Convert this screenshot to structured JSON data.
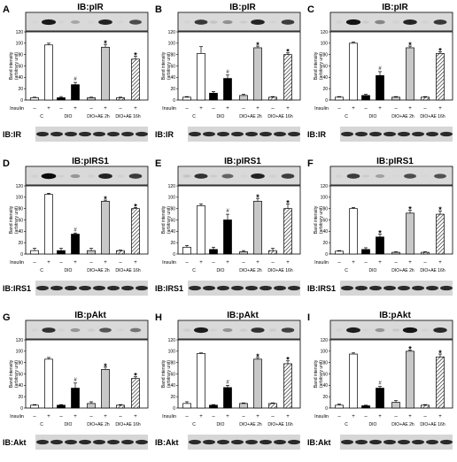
{
  "figure": {
    "insulin_label": "Insulin",
    "ylabel": [
      "Band intensity",
      "(arbitrary unit)"
    ],
    "groups": [
      "C",
      "DIO",
      "DIO+AE 2h",
      "DIO+AE 16h"
    ],
    "insulin_signs": [
      "–",
      "+"
    ],
    "yticks": [
      "0",
      "20",
      "40",
      "60",
      "80",
      "100",
      "120"
    ]
  },
  "chart_data": [
    {
      "type": "bar",
      "panel": "A",
      "title": "IB:pIR",
      "loading_label": "IB:IR",
      "ylim": [
        0,
        120
      ],
      "categories": [
        "C−",
        "C+",
        "DIO−",
        "DIO+",
        "DIO+AE 2h−",
        "DIO+AE 2h+",
        "DIO+AE 16h−",
        "DIO+AE 16h+"
      ],
      "values": [
        4,
        97,
        4,
        27,
        4,
        93,
        4,
        72
      ],
      "errors": [
        1,
        3,
        2,
        4,
        1,
        5,
        1,
        5
      ],
      "annotations": [
        {
          "bar": 3,
          "text": "#"
        },
        {
          "bar": 5,
          "text": "*"
        },
        {
          "bar": 7,
          "text": "*"
        }
      ]
    },
    {
      "type": "bar",
      "panel": "B",
      "title": "IB:pIR",
      "loading_label": "IB:IR",
      "ylim": [
        0,
        120
      ],
      "categories": [
        "C−",
        "C+",
        "DIO−",
        "DIO+",
        "DIO+AE 2h−",
        "DIO+AE 2h+",
        "DIO+AE 16h−",
        "DIO+AE 16h+"
      ],
      "values": [
        5,
        82,
        12,
        38,
        8,
        92,
        5,
        80
      ],
      "errors": [
        1,
        12,
        3,
        6,
        2,
        3,
        1,
        3
      ],
      "annotations": [
        {
          "bar": 3,
          "text": "#"
        },
        {
          "bar": 5,
          "text": "*"
        },
        {
          "bar": 7,
          "text": "*"
        }
      ]
    },
    {
      "type": "bar",
      "panel": "C",
      "title": "IB:pIR",
      "loading_label": "IB:IR",
      "ylim": [
        0,
        120
      ],
      "categories": [
        "C−",
        "C+",
        "DIO−",
        "DIO+",
        "DIO+AE 2h−",
        "DIO+AE 2h+",
        "DIO+AE 16h−",
        "DIO+AE 16h+"
      ],
      "values": [
        5,
        100,
        8,
        43,
        5,
        92,
        5,
        82
      ],
      "errors": [
        1,
        2,
        2,
        7,
        1,
        3,
        1,
        3
      ],
      "annotations": [
        {
          "bar": 3,
          "text": "#"
        },
        {
          "bar": 5,
          "text": "*"
        },
        {
          "bar": 7,
          "text": "*"
        }
      ]
    },
    {
      "type": "bar",
      "panel": "D",
      "title": "IB:pIRS1",
      "loading_label": "IB:IRS1",
      "ylim": [
        0,
        120
      ],
      "categories": [
        "C−",
        "C+",
        "DIO−",
        "DIO+",
        "DIO+AE 2h−",
        "DIO+AE 2h+",
        "DIO+AE 16h−",
        "DIO+AE 16h+"
      ],
      "values": [
        6,
        105,
        6,
        35,
        6,
        93,
        6,
        80
      ],
      "errors": [
        4,
        2,
        4,
        2,
        4,
        2,
        1,
        2
      ],
      "annotations": [
        {
          "bar": 3,
          "text": "#"
        },
        {
          "bar": 5,
          "text": "*"
        },
        {
          "bar": 7,
          "text": "*"
        }
      ]
    },
    {
      "type": "bar",
      "panel": "E",
      "title": "IB:pIRS1",
      "loading_label": "IB:IRS1",
      "ylim": [
        0,
        120
      ],
      "categories": [
        "C−",
        "C+",
        "DIO−",
        "DIO+",
        "DIO+AE 2h−",
        "DIO+AE 2h+",
        "DIO+AE 16h−",
        "DIO+AE 16h+"
      ],
      "values": [
        12,
        85,
        8,
        60,
        4,
        93,
        6,
        80
      ],
      "errors": [
        3,
        3,
        4,
        10,
        2,
        5,
        4,
        8
      ],
      "annotations": [
        {
          "bar": 3,
          "text": "#"
        },
        {
          "bar": 5,
          "text": "*"
        },
        {
          "bar": 7,
          "text": "*"
        }
      ]
    },
    {
      "type": "bar",
      "panel": "F",
      "title": "IB:pIRS1",
      "loading_label": "IB:IRS1",
      "ylim": [
        0,
        120
      ],
      "categories": [
        "C−",
        "C+",
        "DIO−",
        "DIO+",
        "DIO+AE 2h−",
        "DIO+AE 2h+",
        "DIO+AE 16h−",
        "DIO+AE 16h+"
      ],
      "values": [
        5,
        80,
        8,
        30,
        3,
        72,
        3,
        70
      ],
      "errors": [
        1,
        2,
        3,
        5,
        1,
        5,
        1,
        6
      ],
      "annotations": [
        {
          "bar": 3,
          "text": "*"
        },
        {
          "bar": 5,
          "text": "*"
        },
        {
          "bar": 7,
          "text": "*"
        }
      ]
    },
    {
      "type": "bar",
      "panel": "G",
      "title": "IB:pAkt",
      "loading_label": "IB:Akt",
      "ylim": [
        0,
        120
      ],
      "categories": [
        "C−",
        "C+",
        "DIO−",
        "DIO+",
        "DIO+AE 2h−",
        "DIO+AE 2h+",
        "DIO+AE 16h−",
        "DIO+AE 16h+"
      ],
      "values": [
        5,
        86,
        5,
        35,
        8,
        68,
        5,
        52
      ],
      "errors": [
        1,
        3,
        1,
        9,
        3,
        4,
        1,
        3
      ],
      "annotations": [
        {
          "bar": 3,
          "text": "#"
        },
        {
          "bar": 5,
          "text": "*"
        },
        {
          "bar": 7,
          "text": "*"
        }
      ]
    },
    {
      "type": "bar",
      "panel": "H",
      "title": "IB:pAkt",
      "loading_label": "IB:Akt",
      "ylim": [
        0,
        120
      ],
      "categories": [
        "C−",
        "C+",
        "DIO−",
        "DIO+",
        "DIO+AE 2h−",
        "DIO+AE 2h+",
        "DIO+AE 16h−",
        "DIO+AE 16h+"
      ],
      "values": [
        8,
        96,
        5,
        36,
        8,
        86,
        8,
        78
      ],
      "errors": [
        3,
        1,
        1,
        4,
        1,
        3,
        1,
        5
      ],
      "annotations": [
        {
          "bar": 3,
          "text": "#"
        },
        {
          "bar": 5,
          "text": "*"
        },
        {
          "bar": 7,
          "text": "*"
        }
      ]
    },
    {
      "type": "bar",
      "panel": "I",
      "title": "IB:pAkt",
      "loading_label": "IB:Akt",
      "ylim": [
        0,
        120
      ],
      "categories": [
        "C−",
        "C+",
        "DIO−",
        "DIO+",
        "DIO+AE 2h−",
        "DIO+AE 2h+",
        "DIO+AE 16h−",
        "DIO+AE 16h+"
      ],
      "values": [
        5,
        95,
        4,
        35,
        10,
        100,
        5,
        90
      ],
      "errors": [
        2,
        2,
        1,
        3,
        3,
        2,
        1,
        5
      ],
      "annotations": [
        {
          "bar": 3,
          "text": "#"
        },
        {
          "bar": 5,
          "text": "*"
        },
        {
          "bar": 7,
          "text": "*"
        }
      ]
    }
  ]
}
